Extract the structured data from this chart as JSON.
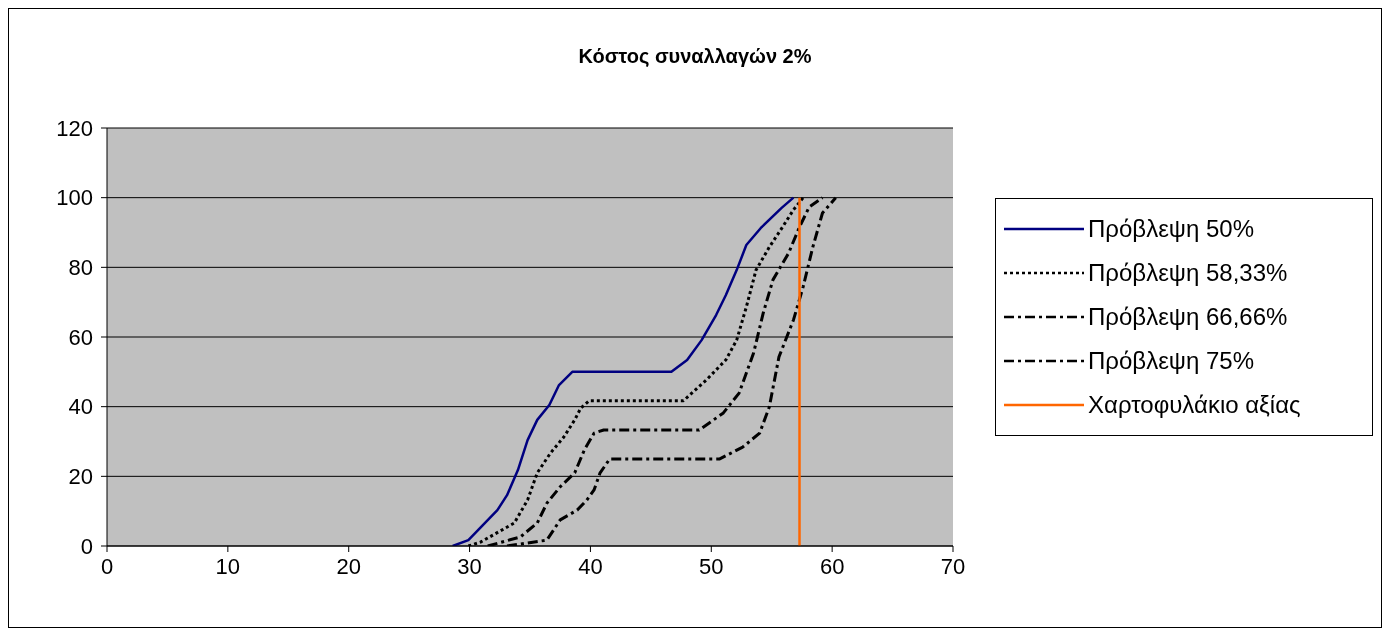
{
  "chart_data": {
    "type": "line",
    "title": "Κόστος συναλλαγών 2%",
    "xlim": [
      0,
      70
    ],
    "xticks": [
      0,
      10,
      20,
      30,
      40,
      50,
      60,
      70
    ],
    "ylim": [
      0,
      120
    ],
    "yticks": [
      0,
      20,
      40,
      60,
      80,
      100,
      120
    ],
    "grid": "y",
    "legend": "right",
    "marker": "none",
    "series": [
      {
        "name": "Πρόβλεψη 50%",
        "color": "#000080",
        "line_style": "solid",
        "x": [
          28.6,
          29.9,
          31.1,
          32.3,
          33.1,
          34.0,
          34.8,
          35.6,
          36.6,
          37.4,
          38.5,
          46.7,
          48.0,
          49.2,
          50.4,
          51.2,
          52.1,
          52.9,
          54.1,
          55.8,
          56.8
        ],
        "values": [
          0,
          1.7,
          6,
          10.3,
          14.6,
          21.8,
          30.4,
          36.2,
          40.5,
          46.2,
          50,
          50,
          53.4,
          59.1,
          66.3,
          72,
          79.2,
          86.4,
          91.3,
          97,
          100
        ]
      },
      {
        "name": "Πρόβλεψη 58,33%",
        "color": "#000000",
        "line_style": "dotted",
        "x": [
          29.9,
          30.9,
          33.7,
          34.8,
          35.6,
          36.7,
          37.8,
          38.7,
          39.2,
          39.9,
          47.7,
          49.6,
          51.2,
          52.1,
          52.9,
          53.7,
          54.8,
          55.9,
          56.8,
          57.6
        ],
        "values": [
          0,
          1.1,
          6.6,
          13.2,
          21,
          26.7,
          31.3,
          36.2,
          39.6,
          41.7,
          41.7,
          47.7,
          53.4,
          59.1,
          68.6,
          79.2,
          85.8,
          91.6,
          96.5,
          100
        ]
      },
      {
        "name": "Πρόβλεψη 66,66%",
        "color": "#000000",
        "line_style": "dashed",
        "x": [
          31.5,
          34.2,
          35.6,
          36.4,
          37.5,
          38.7,
          39.5,
          40.3,
          41.1,
          49.0,
          51.0,
          52.3,
          53.5,
          54.3,
          55.1,
          56.4,
          57.3,
          58.1,
          59.2
        ],
        "values": [
          0,
          2.6,
          6.6,
          12.3,
          17,
          21,
          27.6,
          32.4,
          33.3,
          33.3,
          38.2,
          43.9,
          55.4,
          66.9,
          76.4,
          84.1,
          91.6,
          97.3,
          100
        ]
      },
      {
        "name": "Πρόβλεψη 75%",
        "color": "#000000",
        "line_style": "dashed",
        "x": [
          33.1,
          36.4,
          37.5,
          38.9,
          39.7,
          40.3,
          40.8,
          41.6,
          50.7,
          52.6,
          54.0,
          54.8,
          55.6,
          56.8,
          57.6,
          58.4,
          59.2,
          60.3
        ],
        "values": [
          0,
          1.7,
          7.5,
          10.3,
          13.2,
          16.1,
          21,
          25,
          25,
          28.4,
          32.4,
          39.9,
          54.3,
          64.9,
          74.4,
          85.8,
          95.6,
          100
        ]
      },
      {
        "name": "Χαρτοφυλάκιο αξίας",
        "color": "#ff6600",
        "line_style": "solid",
        "x": [
          57.3,
          57.3
        ],
        "values": [
          0,
          100
        ]
      }
    ]
  }
}
